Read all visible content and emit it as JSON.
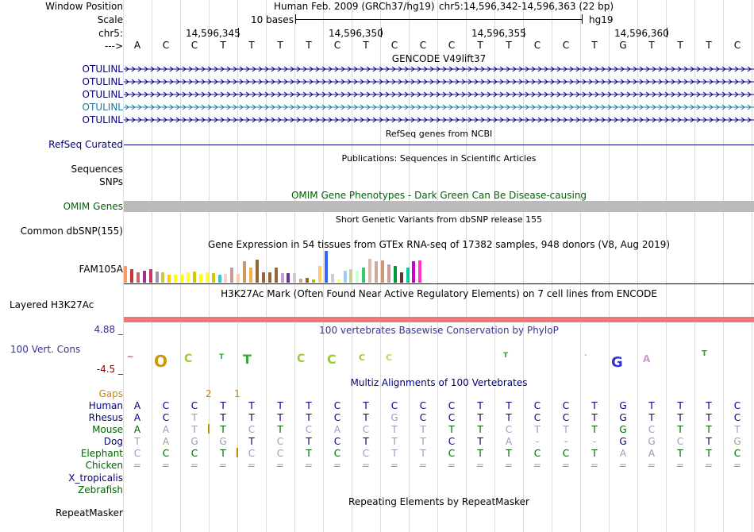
{
  "header": {
    "window_position_label": "Window Position",
    "scale_label": "Scale",
    "chrom_label": "chr5:",
    "strand_label": "--->",
    "assembly": "Human Feb. 2009 (GRCh37/hg19)",
    "position": "chr5:14,596,342-14,596,363 (22 bp)",
    "scale_text": "10 bases",
    "db": "hg19",
    "coords": [
      "14,596,345",
      "14,596,350",
      "14,596,355",
      "14,596,360"
    ]
  },
  "sequence": [
    "A",
    "C",
    "C",
    "T",
    "T",
    "T",
    "T",
    "C",
    "T",
    "C",
    "C",
    "C",
    "T",
    "T",
    "C",
    "C",
    "T",
    "G",
    "T",
    "T",
    "T",
    "C"
  ],
  "tracks": {
    "gencode_title": "GENCODE V49lift37",
    "gencode_labels": [
      "OTULINL",
      "OTULINL",
      "OTULINL",
      "OTULINL",
      "OTULINL"
    ],
    "refseq_title": "RefSeq genes from NCBI",
    "refseq_label": "RefSeq Curated",
    "pubs_title": "Publications: Sequences in Scientific Articles",
    "sequences_label": "Sequences",
    "snps_label": "SNPs",
    "omim_title": "OMIM Gene Phenotypes - Dark Green Can Be Disease-causing",
    "omim_label": "OMIM Genes",
    "dbsnp_title": "Short Genetic Variants from dbSNP release 155",
    "dbsnp_label": "Common dbSNP(155)",
    "gtex_title": "Gene Expression in 54 tissues from GTEx RNA-seq of 17382 samples, 948 donors (V8, Aug 2019)",
    "gtex_label": "FAM105A",
    "h3k_title": "H3K27Ac Mark (Often Found Near Active Regulatory Elements) on 7 cell lines from ENCODE",
    "h3k_label": "Layered H3K27Ac",
    "phylop_title": "100 vertebrates Basewise Conservation by PhyloP",
    "phylop_label": "100 Vert. Cons",
    "phylop_max": "4.88 _",
    "phylop_min": "-4.5 _",
    "multiz_title": "Multiz Alignments of 100 Vertebrates",
    "gaps_label": "Gaps",
    "gap_counts": [
      "2",
      "1"
    ],
    "rmsk_title": "Repeating Elements by RepeatMasker",
    "rmsk_label": "RepeatMasker"
  },
  "gtex_values": [
    22,
    18,
    14,
    16,
    18,
    15,
    14,
    10,
    10,
    10,
    14,
    15,
    12,
    14,
    13,
    10,
    12,
    20,
    12,
    28,
    20,
    30,
    14,
    14,
    20,
    13,
    13,
    13,
    5,
    6,
    4,
    22,
    42,
    12,
    4,
    16,
    18,
    16,
    20,
    32,
    28,
    29,
    24,
    22,
    14,
    20,
    28,
    29
  ],
  "gtex_colors": [
    "#ff9966",
    "#cc3333",
    "#cc6666",
    "#993399",
    "#cc3366",
    "#999999",
    "#cccc33",
    "#ffcc00",
    "#ffff00",
    "#ffff00",
    "#ffff33",
    "#cccc00",
    "#ffff00",
    "#ffff33",
    "#cccc00",
    "#33cccc",
    "#ffcccc",
    "#cc9999",
    "#ffcc99",
    "#cc9966",
    "#ffaa44",
    "#996633",
    "#996633",
    "#996633",
    "#996633",
    "#cc99cc",
    "#663399",
    "#cccccc",
    "#ccaa88",
    "#996633",
    "#99cc00",
    "#ffcc66",
    "#3366ff",
    "#cccccc",
    "#ffff66",
    "#99ccff",
    "#cccc99",
    "#ccffcc",
    "#33cc66",
    "#ddbbaa",
    "#ccaa99",
    "#cc9977",
    "#cc9999",
    "#009933",
    "#663333",
    "#00cc99",
    "#cc00cc",
    "#ff33cc"
  ],
  "alignment": [
    {
      "species": "Human",
      "color": "#000080",
      "bases": [
        "A",
        "C",
        "C",
        "T",
        "T",
        "T",
        "T",
        "C",
        "T",
        "C",
        "C",
        "C",
        "T",
        "T",
        "C",
        "C",
        "T",
        "G",
        "T",
        "T",
        "T",
        "C"
      ],
      "faded": []
    },
    {
      "species": "Rhesus",
      "color": "#000080",
      "bases": [
        "A",
        "C",
        "T",
        "T",
        "T",
        "T",
        "T",
        "C",
        "T",
        "G",
        "C",
        "C",
        "T",
        "T",
        "C",
        "C",
        "T",
        "G",
        "T",
        "T",
        "T",
        "C"
      ],
      "faded": [
        2,
        9
      ]
    },
    {
      "species": "Mouse",
      "color": "#006400",
      "bases": [
        "A",
        "A",
        "T",
        "T",
        "C",
        "T",
        "C",
        "A",
        "C",
        "T",
        "T",
        "T",
        "T",
        "C",
        "T",
        "T",
        "T",
        "G",
        "C",
        "T",
        "T",
        "T"
      ],
      "faded": [
        1,
        2,
        4,
        6,
        7,
        8,
        9,
        10,
        13,
        14,
        15,
        18,
        21
      ]
    },
    {
      "species": "Dog",
      "color": "#000080",
      "bases": [
        "T",
        "A",
        "G",
        "G",
        "T",
        "C",
        "T",
        "C",
        "T",
        "T",
        "T",
        "C",
        "T",
        "A",
        "-",
        "-",
        "-",
        "G",
        "G",
        "C",
        "T",
        "G"
      ],
      "faded": [
        0,
        1,
        2,
        3,
        5,
        9,
        10,
        13,
        14,
        15,
        16,
        18,
        19,
        21
      ]
    },
    {
      "species": "Elephant",
      "color": "#006400",
      "bases": [
        "C",
        "C",
        "C",
        "T",
        "C",
        "C",
        "T",
        "C",
        "C",
        "T",
        "T",
        "C",
        "T",
        "T",
        "C",
        "C",
        "T",
        "A",
        "A",
        "T",
        "T",
        "C"
      ],
      "faded": [
        0,
        4,
        5,
        8,
        9,
        10,
        17,
        18
      ]
    },
    {
      "species": "Chicken",
      "color": "#006400",
      "bases": [
        "=",
        "=",
        "=",
        "=",
        "=",
        "=",
        "=",
        "=",
        "=",
        "=",
        "=",
        "=",
        "=",
        "=",
        "=",
        "=",
        "=",
        "=",
        "=",
        "=",
        "=",
        "="
      ],
      "faded": "all"
    },
    {
      "species": "X_tropicalis",
      "color": "#000080",
      "bases": [],
      "faded": []
    },
    {
      "species": "Zebrafish",
      "color": "#006400",
      "bases": [],
      "faded": []
    }
  ],
  "colors": {
    "accent_blue": "#000080",
    "omim_green": "#006400",
    "gaps_orange": "#cc8800",
    "h3k_red": "#ee7777",
    "phylop_blue": "#333399"
  }
}
